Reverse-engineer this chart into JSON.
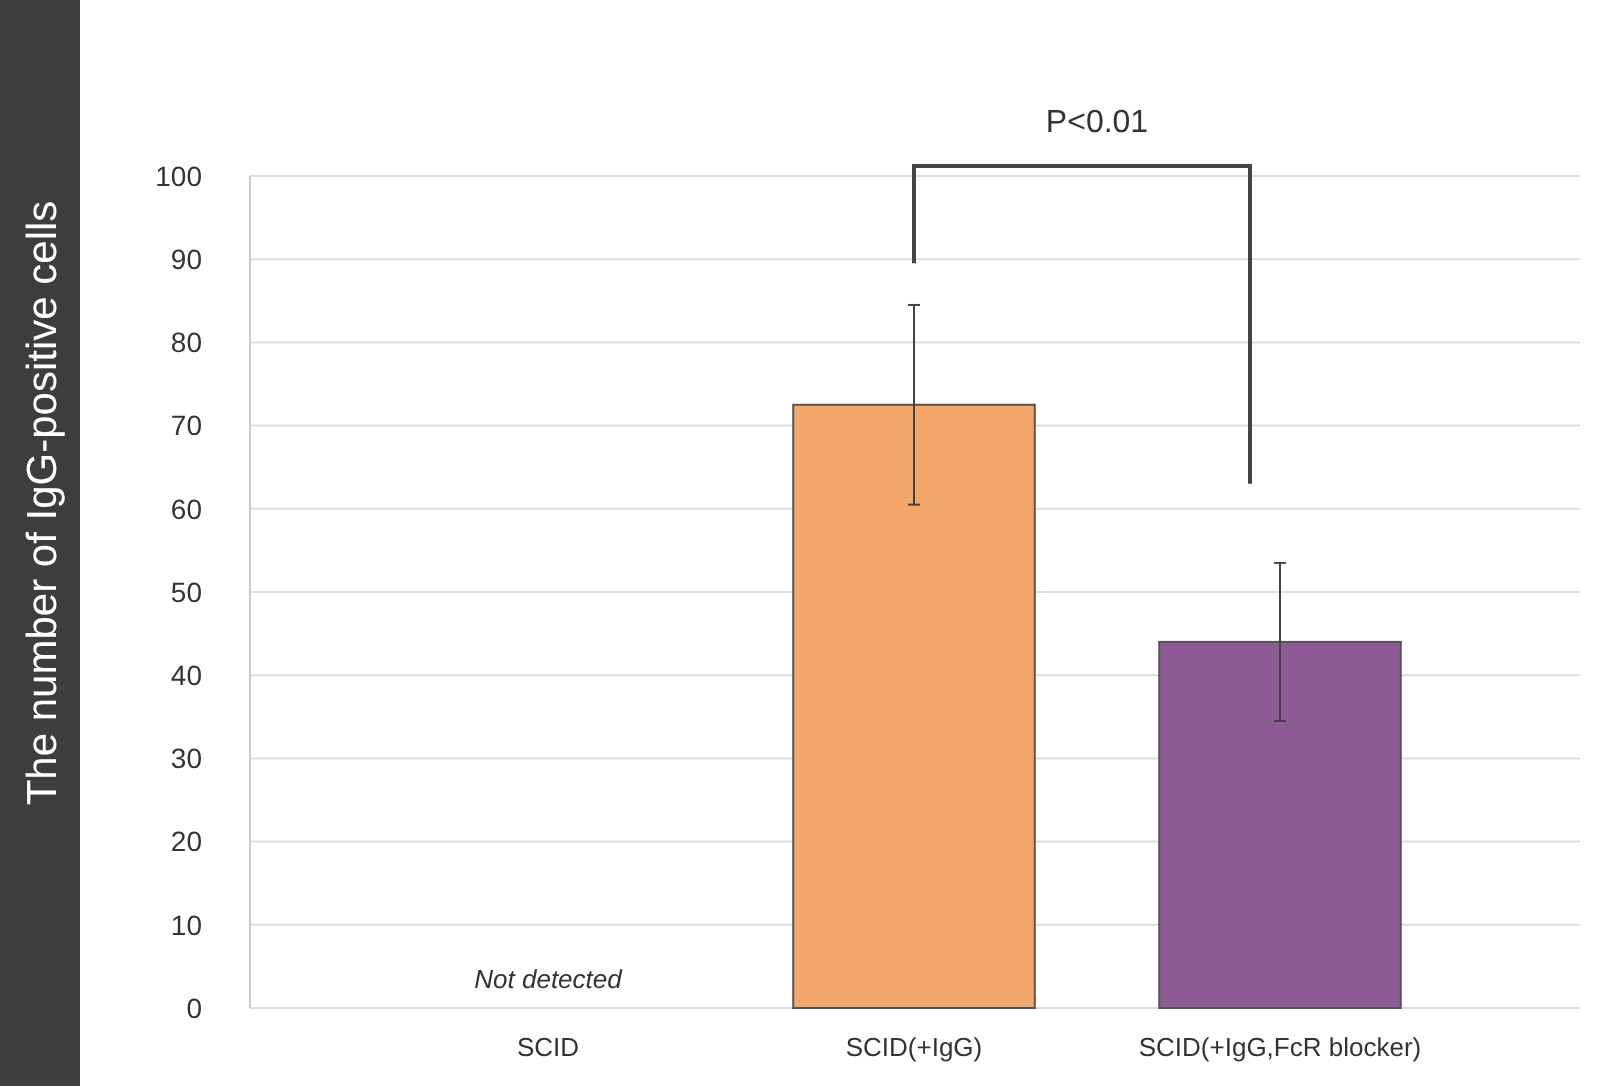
{
  "chart_data": {
    "type": "bar",
    "ylabel": "The number of IgG-positive cells",
    "categories": [
      "SCID",
      "SCID(+IgG)",
      "SCID(+IgG,FcR blocker)"
    ],
    "values": [
      null,
      72.5,
      44
    ],
    "errors": [
      null,
      12,
      9.5
    ],
    "colors": [
      null,
      "#f4a76b",
      "#8e5a96"
    ],
    "ylim": [
      0,
      100
    ],
    "yticks": [
      0,
      10,
      20,
      30,
      40,
      50,
      60,
      70,
      80,
      90,
      100
    ],
    "grid": "y",
    "annotations": [
      "Not detected",
      "P<0.01"
    ]
  }
}
